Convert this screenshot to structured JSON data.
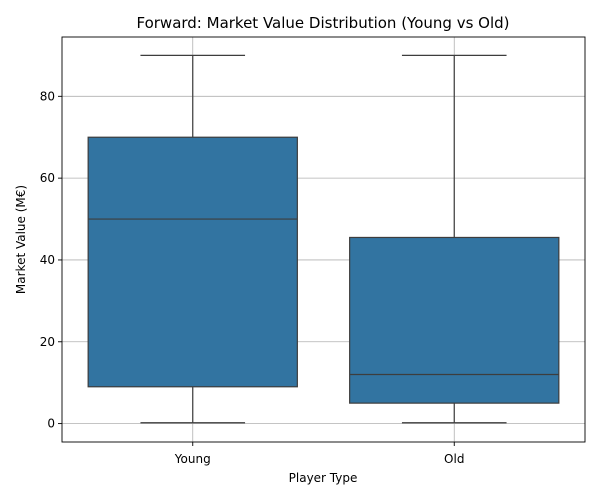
{
  "chart_data": {
    "type": "box",
    "title": "Forward: Market Value Distribution (Young vs Old)",
    "xlabel": "Player Type",
    "ylabel": "Market Value (M€)",
    "categories": [
      "Young",
      "Old"
    ],
    "series": [
      {
        "category": "Young",
        "min": 0.2,
        "q1": 9,
        "median": 50,
        "q3": 70,
        "max": 90
      },
      {
        "category": "Old",
        "min": 0.2,
        "q1": 5,
        "median": 12,
        "q3": 45.5,
        "max": 90
      }
    ],
    "ylim": [
      -4.5,
      94.5
    ],
    "yticks": [
      0,
      20,
      40,
      60,
      80
    ],
    "grid": true,
    "box_color": "#3274a1",
    "edge_color": "#3d3d3d"
  }
}
